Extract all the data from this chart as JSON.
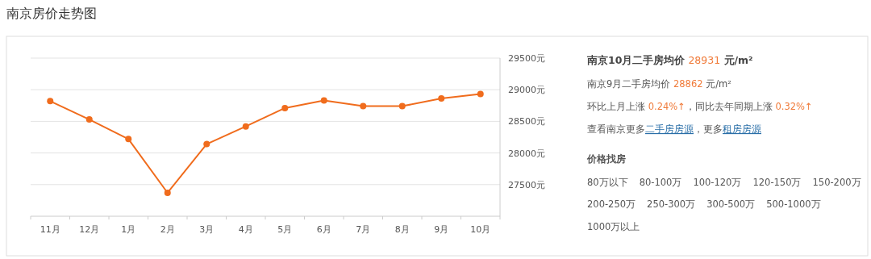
{
  "chart_data": [
    {
      "type": "line",
      "title": "南京房价走势图",
      "categories": [
        "11月",
        "12月",
        "1月",
        "2月",
        "3月",
        "4月",
        "5月",
        "6月",
        "7月",
        "8月",
        "9月",
        "10月"
      ],
      "values": [
        28820,
        28530,
        28220,
        27370,
        28140,
        28420,
        28710,
        28830,
        28740,
        28740,
        28862,
        28931
      ],
      "color": "#f06c1d",
      "ylim": [
        27000,
        29500
      ],
      "yticks": [
        {
          "value": 27500,
          "label": "27500元"
        },
        {
          "value": 28000,
          "label": "28000元"
        },
        {
          "value": 28500,
          "label": "28500元"
        },
        {
          "value": 29000,
          "label": "29000元"
        },
        {
          "value": 29500,
          "label": "29500元"
        }
      ],
      "grid": "y",
      "marker": "circle"
    },
    {
      "type": "other",
      "title": "价格找房",
      "annotations": [
        "南京10月二手房均价",
        "28931",
        "元/m²",
        "南京9月二手房均价",
        "28862",
        "元/m²",
        "环比上月上涨",
        "0.24%↑",
        "，同比去年同期上涨",
        "0.32%↑",
        "查看南京更多",
        "二手房房源",
        "，更多",
        "租房房源",
        "80万以下",
        "80-100万",
        "100-120万",
        "120-150万",
        "150-200万",
        "200-250万",
        "250-300万",
        "300-500万",
        "500-1000万",
        "1000万以上"
      ]
    }
  ]
}
